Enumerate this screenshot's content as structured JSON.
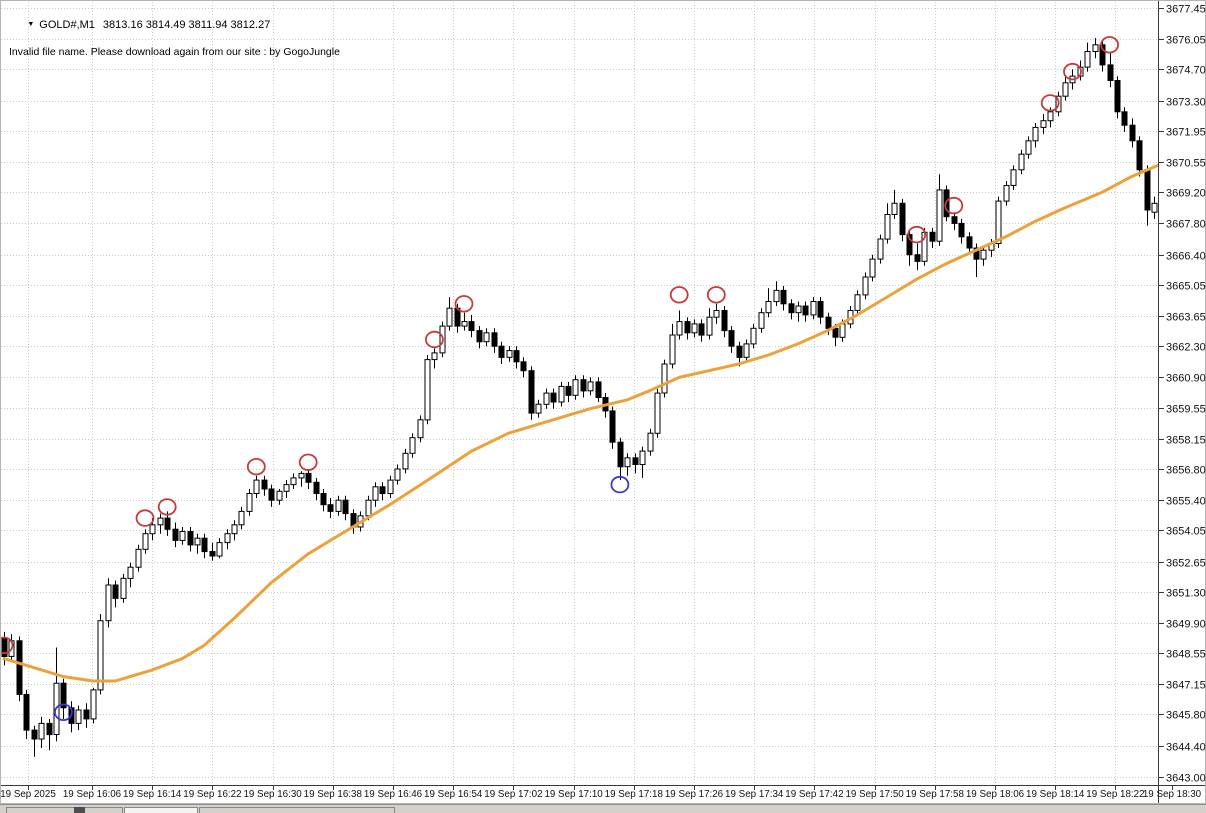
{
  "header": {
    "dropdown_icon": "▼",
    "symbol": "GOLD#,M1",
    "ohlc": "3813.16 3814.49 3811.94 3812.27",
    "warning": "Invalid file name. Please download again from our site : by GogoJungle"
  },
  "price_axis": {
    "min": 3643.0,
    "max": 3677.45,
    "labels": [
      "3677.45",
      "3676.05",
      "3674.70",
      "3673.30",
      "3671.95",
      "3670.55",
      "3669.20",
      "3667.80",
      "3666.40",
      "3665.05",
      "3663.65",
      "3662.30",
      "3660.90",
      "3659.55",
      "3658.15",
      "3656.80",
      "3655.40",
      "3654.05",
      "3652.65",
      "3651.30",
      "3649.90",
      "3648.55",
      "3647.15",
      "3645.80",
      "3644.40",
      "3643.00"
    ]
  },
  "time_axis": {
    "labels": [
      "19 Sep 2025",
      "19 Sep 16:06",
      "19 Sep 16:14",
      "19 Sep 16:22",
      "19 Sep 16:30",
      "19 Sep 16:38",
      "19 Sep 16:46",
      "19 Sep 16:54",
      "19 Sep 17:02",
      "19 Sep 17:10",
      "19 Sep 17:18",
      "19 Sep 17:26",
      "19 Sep 17:34",
      "19 Sep 17:42",
      "19 Sep 17:50",
      "19 Sep 17:58",
      "19 Sep 18:06",
      "19 Sep 18:14",
      "19 Sep 18:22",
      "19 Sep 18:30"
    ]
  },
  "chart_data": {
    "type": "candlestick",
    "symbol": "GOLD#",
    "timeframe": "M1",
    "grid": true,
    "colors": {
      "bull": "#ffffff",
      "bear": "#000000",
      "outline": "#000000",
      "grid": "#c9c9c9",
      "axis_border": "#3a3a3a",
      "ma": "#ECA13B",
      "sell_marker": "#C53B3B",
      "buy_marker": "#3939CC"
    },
    "candles": [
      [
        3649.2,
        3649.5,
        3648.0,
        3648.4
      ],
      [
        3648.4,
        3649.4,
        3648.2,
        3649.1
      ],
      [
        3649.1,
        3649.3,
        3646.4,
        3646.7
      ],
      [
        3646.7,
        3646.9,
        3644.7,
        3645.1
      ],
      [
        3645.1,
        3645.3,
        3643.9,
        3644.7
      ],
      [
        3644.7,
        3645.7,
        3644.3,
        3645.4
      ],
      [
        3645.4,
        3645.6,
        3644.2,
        3644.9
      ],
      [
        3644.9,
        3648.8,
        3644.6,
        3647.2
      ],
      [
        3647.2,
        3647.4,
        3645.6,
        3646.1
      ],
      [
        3646.1,
        3646.4,
        3645.0,
        3645.4
      ],
      [
        3645.4,
        3646.2,
        3645.1,
        3646.0
      ],
      [
        3646.0,
        3646.3,
        3645.2,
        3645.6
      ],
      [
        3645.6,
        3647.0,
        3645.4,
        3646.9
      ],
      [
        3646.9,
        3650.3,
        3646.7,
        3650.0
      ],
      [
        3650.0,
        3651.9,
        3649.7,
        3651.6
      ],
      [
        3651.6,
        3651.8,
        3650.6,
        3651.0
      ],
      [
        3651.0,
        3652.1,
        3650.8,
        3651.9
      ],
      [
        3651.9,
        3652.6,
        3651.5,
        3652.4
      ],
      [
        3652.4,
        3653.4,
        3652.2,
        3653.2
      ],
      [
        3653.2,
        3654.1,
        3653.0,
        3653.9
      ],
      [
        3653.9,
        3654.6,
        3653.6,
        3654.3
      ],
      [
        3654.3,
        3654.8,
        3653.9,
        3654.6
      ],
      [
        3654.6,
        3654.9,
        3653.8,
        3654.1
      ],
      [
        3654.1,
        3654.4,
        3653.3,
        3653.6
      ],
      [
        3653.6,
        3654.2,
        3653.4,
        3654.0
      ],
      [
        3654.0,
        3654.2,
        3653.1,
        3653.4
      ],
      [
        3653.4,
        3653.9,
        3653.0,
        3653.7
      ],
      [
        3653.7,
        3653.9,
        3652.8,
        3653.1
      ],
      [
        3653.1,
        3653.5,
        3652.7,
        3652.9
      ],
      [
        3652.9,
        3653.7,
        3652.8,
        3653.5
      ],
      [
        3653.5,
        3654.1,
        3653.2,
        3653.9
      ],
      [
        3653.9,
        3654.5,
        3653.6,
        3654.3
      ],
      [
        3654.3,
        3655.1,
        3654.1,
        3654.9
      ],
      [
        3654.9,
        3655.9,
        3654.7,
        3655.7
      ],
      [
        3655.7,
        3656.5,
        3655.5,
        3656.3
      ],
      [
        3656.3,
        3656.5,
        3655.6,
        3655.9
      ],
      [
        3655.9,
        3656.1,
        3655.1,
        3655.4
      ],
      [
        3655.4,
        3655.9,
        3655.2,
        3655.8
      ],
      [
        3655.8,
        3656.3,
        3655.5,
        3656.1
      ],
      [
        3656.1,
        3656.6,
        3655.9,
        3656.4
      ],
      [
        3656.4,
        3656.7,
        3656.0,
        3656.6
      ],
      [
        3656.6,
        3656.8,
        3655.9,
        3656.2
      ],
      [
        3656.2,
        3656.4,
        3655.4,
        3655.7
      ],
      [
        3655.7,
        3655.9,
        3654.9,
        3655.2
      ],
      [
        3655.2,
        3655.5,
        3654.6,
        3654.9
      ],
      [
        3654.9,
        3655.6,
        3654.7,
        3655.4
      ],
      [
        3655.4,
        3655.6,
        3654.5,
        3654.8
      ],
      [
        3654.8,
        3655.0,
        3653.9,
        3654.2
      ],
      [
        3654.2,
        3654.9,
        3654.0,
        3654.7
      ],
      [
        3654.7,
        3655.6,
        3654.5,
        3655.4
      ],
      [
        3655.4,
        3656.2,
        3655.1,
        3656.0
      ],
      [
        3656.0,
        3656.2,
        3655.4,
        3655.7
      ],
      [
        3655.7,
        3656.5,
        3655.5,
        3656.3
      ],
      [
        3656.3,
        3657.0,
        3656.1,
        3656.8
      ],
      [
        3656.8,
        3657.7,
        3656.6,
        3657.5
      ],
      [
        3657.5,
        3658.4,
        3657.3,
        3658.2
      ],
      [
        3658.2,
        3659.2,
        3658.0,
        3659.0
      ],
      [
        3659.0,
        3661.9,
        3658.8,
        3661.7
      ],
      [
        3661.7,
        3662.2,
        3661.3,
        3662.0
      ],
      [
        3662.0,
        3663.4,
        3661.8,
        3663.2
      ],
      [
        3663.2,
        3664.5,
        3663.0,
        3664.0
      ],
      [
        3664.0,
        3664.2,
        3662.9,
        3663.2
      ],
      [
        3663.2,
        3663.8,
        3663.0,
        3663.4
      ],
      [
        3663.4,
        3663.7,
        3662.7,
        3663.0
      ],
      [
        3663.0,
        3663.2,
        3662.2,
        3662.5
      ],
      [
        3662.5,
        3663.1,
        3662.3,
        3662.9
      ],
      [
        3662.9,
        3663.1,
        3662.0,
        3662.3
      ],
      [
        3662.3,
        3662.5,
        3661.5,
        3661.8
      ],
      [
        3661.8,
        3662.3,
        3661.6,
        3662.1
      ],
      [
        3662.1,
        3662.3,
        3661.3,
        3661.6
      ],
      [
        3661.6,
        3661.8,
        3660.9,
        3661.2
      ],
      [
        3661.2,
        3661.4,
        3659.0,
        3659.3
      ],
      [
        3659.3,
        3659.9,
        3659.1,
        3659.7
      ],
      [
        3659.7,
        3660.4,
        3659.5,
        3660.2
      ],
      [
        3660.2,
        3660.4,
        3659.5,
        3659.8
      ],
      [
        3659.8,
        3660.7,
        3659.6,
        3660.5
      ],
      [
        3660.5,
        3660.7,
        3659.8,
        3660.1
      ],
      [
        3660.1,
        3661.0,
        3659.9,
        3660.8
      ],
      [
        3660.8,
        3661.0,
        3660.0,
        3660.3
      ],
      [
        3660.3,
        3660.9,
        3660.1,
        3660.7
      ],
      [
        3660.7,
        3660.9,
        3659.8,
        3660.0
      ],
      [
        3660.0,
        3660.2,
        3659.1,
        3659.4
      ],
      [
        3659.4,
        3659.6,
        3657.7,
        3658.0
      ],
      [
        3658.0,
        3658.2,
        3656.3,
        3656.9
      ],
      [
        3656.9,
        3657.5,
        3656.5,
        3657.3
      ],
      [
        3657.3,
        3657.5,
        3656.6,
        3657.0
      ],
      [
        3657.0,
        3657.8,
        3656.4,
        3657.6
      ],
      [
        3657.6,
        3658.6,
        3657.4,
        3658.4
      ],
      [
        3658.4,
        3660.4,
        3658.2,
        3660.2
      ],
      [
        3660.2,
        3661.7,
        3660.0,
        3661.5
      ],
      [
        3661.5,
        3663.3,
        3661.3,
        3662.8
      ],
      [
        3662.8,
        3663.9,
        3662.6,
        3663.4
      ],
      [
        3663.4,
        3663.6,
        3662.6,
        3662.9
      ],
      [
        3662.9,
        3663.5,
        3662.7,
        3663.3
      ],
      [
        3663.3,
        3663.5,
        3662.5,
        3662.8
      ],
      [
        3662.8,
        3664.0,
        3662.6,
        3663.6
      ],
      [
        3663.6,
        3664.2,
        3663.3,
        3663.9
      ],
      [
        3663.9,
        3664.1,
        3662.7,
        3663.0
      ],
      [
        3663.0,
        3663.2,
        3662.0,
        3662.3
      ],
      [
        3662.3,
        3662.5,
        3661.4,
        3661.8
      ],
      [
        3661.8,
        3662.6,
        3661.6,
        3662.4
      ],
      [
        3662.4,
        3663.3,
        3662.2,
        3663.1
      ],
      [
        3663.1,
        3664.0,
        3662.9,
        3663.8
      ],
      [
        3663.8,
        3664.9,
        3663.6,
        3664.3
      ],
      [
        3664.3,
        3665.2,
        3664.1,
        3664.8
      ],
      [
        3664.8,
        3665.0,
        3663.9,
        3664.2
      ],
      [
        3664.2,
        3664.4,
        3663.5,
        3663.8
      ],
      [
        3663.8,
        3664.3,
        3663.4,
        3664.1
      ],
      [
        3664.1,
        3664.3,
        3663.4,
        3663.7
      ],
      [
        3663.7,
        3664.5,
        3663.5,
        3664.3
      ],
      [
        3664.3,
        3664.5,
        3663.3,
        3663.6
      ],
      [
        3663.6,
        3663.8,
        3662.8,
        3663.1
      ],
      [
        3663.1,
        3663.3,
        3662.3,
        3662.7
      ],
      [
        3662.7,
        3663.5,
        3662.5,
        3663.3
      ],
      [
        3663.3,
        3664.1,
        3663.1,
        3663.9
      ],
      [
        3663.9,
        3664.8,
        3663.7,
        3664.6
      ],
      [
        3664.6,
        3665.6,
        3664.4,
        3665.4
      ],
      [
        3665.4,
        3666.4,
        3665.2,
        3666.2
      ],
      [
        3666.2,
        3667.3,
        3666.0,
        3667.1
      ],
      [
        3667.1,
        3668.7,
        3666.9,
        3668.2
      ],
      [
        3668.2,
        3669.3,
        3668.0,
        3668.7
      ],
      [
        3668.7,
        3668.9,
        3667.0,
        3667.3
      ],
      [
        3667.3,
        3667.5,
        3665.9,
        3666.4
      ],
      [
        3666.4,
        3666.9,
        3665.7,
        3666.1
      ],
      [
        3666.1,
        3667.6,
        3665.9,
        3667.4
      ],
      [
        3667.4,
        3667.6,
        3666.7,
        3667.0
      ],
      [
        3667.0,
        3670.0,
        3666.8,
        3669.3
      ],
      [
        3669.3,
        3669.5,
        3667.9,
        3668.1
      ],
      [
        3668.1,
        3668.3,
        3667.5,
        3667.8
      ],
      [
        3667.8,
        3668.0,
        3666.9,
        3667.2
      ],
      [
        3667.2,
        3667.4,
        3666.4,
        3666.7
      ],
      [
        3666.7,
        3666.9,
        3665.4,
        3666.2
      ],
      [
        3666.2,
        3666.8,
        3665.9,
        3666.6
      ],
      [
        3666.6,
        3667.1,
        3666.3,
        3666.9
      ],
      [
        3666.9,
        3669.0,
        3666.7,
        3668.8
      ],
      [
        3668.8,
        3669.7,
        3668.6,
        3669.5
      ],
      [
        3669.5,
        3670.4,
        3669.3,
        3670.2
      ],
      [
        3670.2,
        3671.1,
        3670.0,
        3670.9
      ],
      [
        3670.9,
        3671.7,
        3670.7,
        3671.5
      ],
      [
        3671.5,
        3672.3,
        3671.2,
        3672.1
      ],
      [
        3672.1,
        3672.7,
        3671.8,
        3672.4
      ],
      [
        3672.4,
        3673.0,
        3672.1,
        3672.8
      ],
      [
        3672.8,
        3673.7,
        3672.6,
        3673.5
      ],
      [
        3673.5,
        3674.4,
        3673.3,
        3674.1
      ],
      [
        3674.1,
        3674.7,
        3673.8,
        3674.4
      ],
      [
        3674.4,
        3675.1,
        3674.2,
        3674.8
      ],
      [
        3674.8,
        3675.9,
        3674.6,
        3675.5
      ],
      [
        3675.5,
        3676.1,
        3675.2,
        3675.8
      ],
      [
        3675.8,
        3676.0,
        3674.6,
        3674.9
      ],
      [
        3674.9,
        3675.5,
        3673.9,
        3674.2
      ],
      [
        3674.2,
        3674.4,
        3672.5,
        3672.8
      ],
      [
        3672.8,
        3673.0,
        3671.9,
        3672.2
      ],
      [
        3672.2,
        3672.5,
        3671.2,
        3671.5
      ],
      [
        3671.5,
        3671.7,
        3669.9,
        3670.2
      ],
      [
        3670.2,
        3670.4,
        3667.7,
        3668.4
      ],
      [
        3668.3,
        3669.0,
        3668.0,
        3668.7
      ]
    ],
    "ma": {
      "name": "moving-average",
      "points": [
        [
          0,
          3648.3
        ],
        [
          4,
          3647.9
        ],
        [
          8,
          3647.5
        ],
        [
          12,
          3647.3
        ],
        [
          15,
          3647.3
        ],
        [
          20,
          3647.8
        ],
        [
          24,
          3648.3
        ],
        [
          27,
          3648.9
        ],
        [
          31,
          3650.1
        ],
        [
          36,
          3651.7
        ],
        [
          41,
          3653.0
        ],
        [
          47,
          3654.2
        ],
        [
          52,
          3655.2
        ],
        [
          58,
          3656.5
        ],
        [
          63,
          3657.6
        ],
        [
          68,
          3658.4
        ],
        [
          74,
          3659.0
        ],
        [
          79,
          3659.5
        ],
        [
          84,
          3659.9
        ],
        [
          87,
          3660.3
        ],
        [
          91,
          3660.9
        ],
        [
          95,
          3661.2
        ],
        [
          99,
          3661.5
        ],
        [
          103,
          3661.9
        ],
        [
          107,
          3662.4
        ],
        [
          111,
          3663.0
        ],
        [
          115,
          3663.7
        ],
        [
          119,
          3664.5
        ],
        [
          123,
          3665.3
        ],
        [
          127,
          3666.0
        ],
        [
          131,
          3666.6
        ],
        [
          135,
          3667.2
        ],
        [
          139,
          3667.9
        ],
        [
          143,
          3668.5
        ],
        [
          148,
          3669.2
        ],
        [
          152,
          3669.9
        ],
        [
          155.5,
          3670.4
        ]
      ]
    },
    "markers": [
      {
        "i": 0,
        "price": 3648.9,
        "type": "sell"
      },
      {
        "i": 8,
        "price": 3645.9,
        "type": "buy"
      },
      {
        "i": 19,
        "price": 3654.6,
        "type": "sell"
      },
      {
        "i": 22,
        "price": 3655.1,
        "type": "sell"
      },
      {
        "i": 34,
        "price": 3656.9,
        "type": "sell"
      },
      {
        "i": 41,
        "price": 3657.1,
        "type": "sell"
      },
      {
        "i": 58,
        "price": 3662.6,
        "type": "sell"
      },
      {
        "i": 62,
        "price": 3664.2,
        "type": "sell"
      },
      {
        "i": 83,
        "price": 3656.1,
        "type": "buy"
      },
      {
        "i": 91,
        "price": 3664.6,
        "type": "sell"
      },
      {
        "i": 96,
        "price": 3664.6,
        "type": "sell"
      },
      {
        "i": 123,
        "price": 3667.3,
        "type": "sell"
      },
      {
        "i": 128,
        "price": 3668.6,
        "type": "sell"
      },
      {
        "i": 141,
        "price": 3673.2,
        "type": "sell"
      },
      {
        "i": 144,
        "price": 3674.6,
        "type": "sell"
      },
      {
        "i": 149,
        "price": 3675.8,
        "type": "sell"
      }
    ]
  }
}
